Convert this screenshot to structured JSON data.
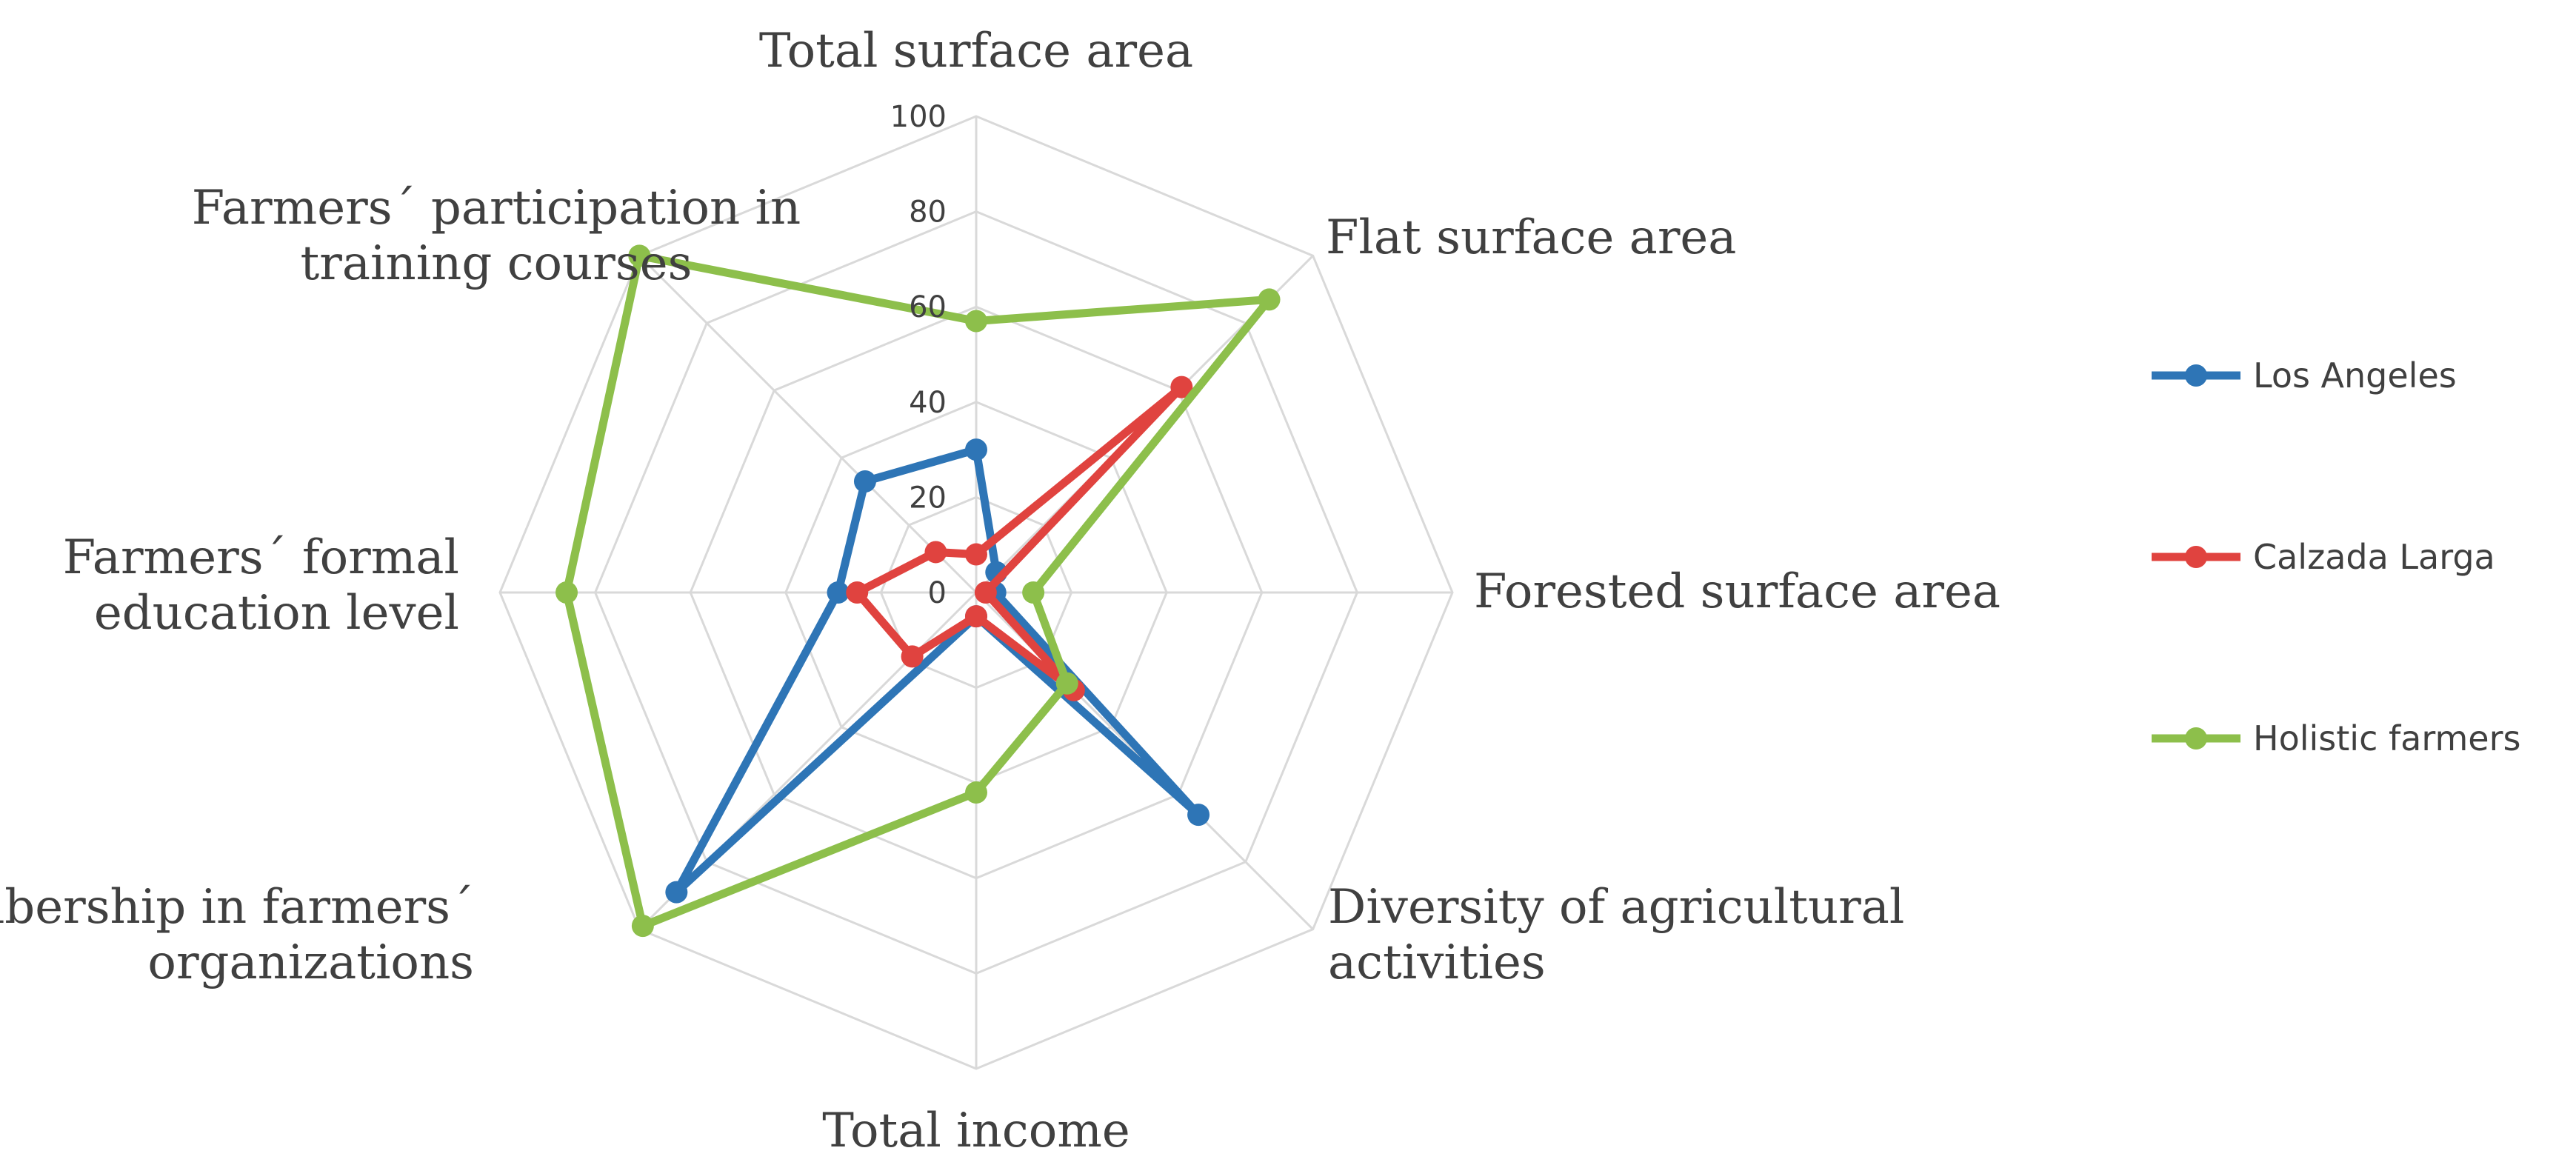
{
  "chart_data": {
    "type": "radar",
    "axes": [
      [
        "Total surface area"
      ],
      [
        "Flat surface area"
      ],
      [
        "Forested surface area"
      ],
      [
        "Diversity of agricultural",
        "activities"
      ],
      [
        "Total income"
      ],
      [
        "Membership in farmers´",
        "organizations"
      ],
      [
        "Farmers´ formal",
        "education level"
      ],
      [
        "Farmers´ participation in",
        "training courses"
      ]
    ],
    "rlim": [
      0,
      100
    ],
    "ticks": [
      "0",
      "20",
      "40",
      "60",
      "80",
      "100"
    ],
    "tick_values": [
      0,
      20,
      40,
      60,
      80,
      100
    ],
    "grid": true,
    "legend_position": "right",
    "series": [
      {
        "name": "Los Angeles",
        "color": "#2E75B6",
        "values": [
          30,
          6,
          4,
          66,
          5,
          89,
          29,
          33
        ]
      },
      {
        "name": "Calzada Larga",
        "color": "#E0433F",
        "values": [
          8,
          61,
          2,
          29,
          5,
          19,
          25,
          12
        ]
      },
      {
        "name": "Holistic farmers",
        "color": "#8DBF4B",
        "values": [
          57,
          87,
          12,
          27,
          42,
          99,
          86,
          100
        ]
      }
    ]
  }
}
